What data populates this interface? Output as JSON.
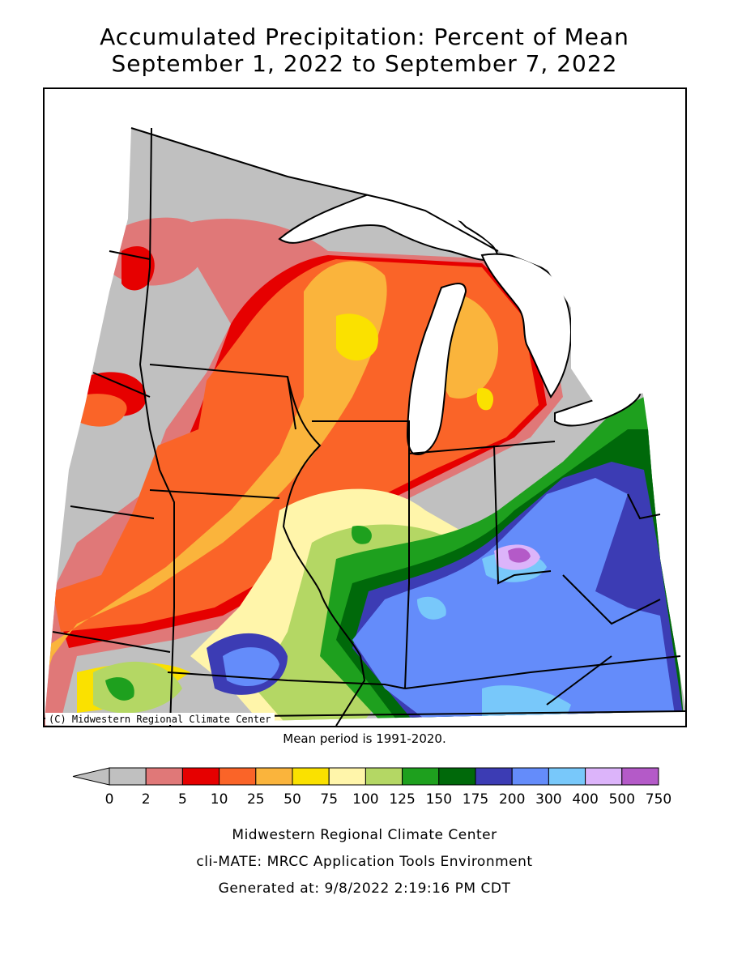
{
  "title": {
    "line1": "Accumulated Precipitation: Percent of Mean",
    "line2": "September 1, 2022 to September 7, 2022"
  },
  "map": {
    "copyright": "(C) Midwestern Regional Climate Center"
  },
  "mean_period": "Mean period is 1991-2020.",
  "legend": {
    "bins": [
      {
        "label": "0",
        "color": "#c0c0c0"
      },
      {
        "label": "2",
        "color": "#e07878"
      },
      {
        "label": "5",
        "color": "#e60000"
      },
      {
        "label": "10",
        "color": "#fa6428"
      },
      {
        "label": "25",
        "color": "#fab43c"
      },
      {
        "label": "50",
        "color": "#fae100"
      },
      {
        "label": "75",
        "color": "#fff5aa"
      },
      {
        "label": "100",
        "color": "#b4d764"
      },
      {
        "label": "125",
        "color": "#1ea01e"
      },
      {
        "label": "150",
        "color": "#00690a"
      },
      {
        "label": "175",
        "color": "#3c3cb4"
      },
      {
        "label": "200",
        "color": "#648cfa"
      },
      {
        "label": "300",
        "color": "#78c8fa"
      },
      {
        "label": "400",
        "color": "#dcb4fa"
      },
      {
        "label": "500",
        "color": "#b45ac8"
      }
    ],
    "last_label": "750"
  },
  "footer": {
    "line1": "Midwestern Regional Climate Center",
    "line2": "cli-MATE: MRCC Application Tools Environment",
    "line3": "Generated at: 9/8/2022 2:19:16 PM CDT"
  }
}
